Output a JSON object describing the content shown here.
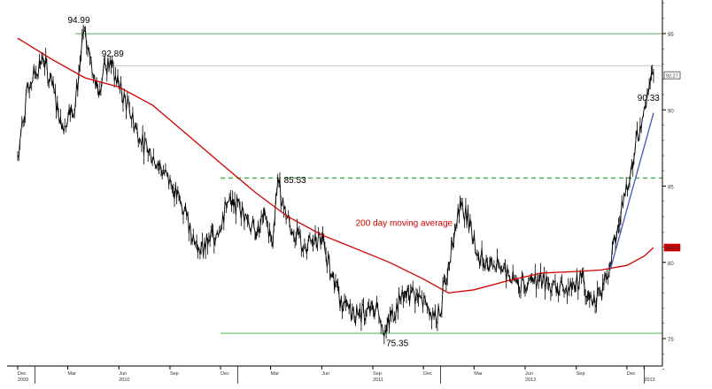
{
  "chart_data": {
    "type": "line",
    "title": "",
    "xlabel": "",
    "ylabel": "",
    "ylim": [
      72.5,
      98.7
    ],
    "xlim": [
      "2009-12-01",
      "2013-01-31"
    ],
    "y_ticks": [
      75,
      80,
      85,
      90,
      95
    ],
    "y_tick_labels": [
      "75",
      "80",
      "85",
      "90",
      "95"
    ],
    "x_ticks": [
      {
        "date": "2009-12-01",
        "label": "Dec",
        "year": "2009"
      },
      {
        "date": "2010-03-01",
        "label": "Mar",
        "year": ""
      },
      {
        "date": "2010-06-01",
        "label": "Jun",
        "year": "2010"
      },
      {
        "date": "2010-09-01",
        "label": "Sep",
        "year": ""
      },
      {
        "date": "2010-12-01",
        "label": "Dec",
        "year": ""
      },
      {
        "date": "2011-03-01",
        "label": "Mar",
        "year": ""
      },
      {
        "date": "2011-06-01",
        "label": "Jun",
        "year": ""
      },
      {
        "date": "2011-09-01",
        "label": "Sep",
        "year": "2011"
      },
      {
        "date": "2011-12-01",
        "label": "Dec",
        "year": ""
      },
      {
        "date": "2012-03-01",
        "label": "Mar",
        "year": ""
      },
      {
        "date": "2012-06-01",
        "label": "Jun",
        "year": "2012"
      },
      {
        "date": "2012-09-01",
        "label": "Sep",
        "year": ""
      },
      {
        "date": "2012-12-01",
        "label": "Dec",
        "year": ""
      },
      {
        "date": "2013-01-01",
        "label": "",
        "year": "2013"
      }
    ],
    "series": [
      {
        "type": "price",
        "color": "#000000",
        "x": [
          "2009-12-01",
          "2009-12-20",
          "2010-01-15",
          "2010-01-28",
          "2010-02-20",
          "2010-03-15",
          "2010-03-29",
          "2010-04-10",
          "2010-04-26",
          "2010-05-05",
          "2010-05-18",
          "2010-06-01",
          "2010-06-20",
          "2010-07-10",
          "2010-08-10",
          "2010-09-05",
          "2010-10-01",
          "2010-10-25",
          "2010-11-10",
          "2010-11-25",
          "2010-12-15",
          "2011-01-05",
          "2011-02-01",
          "2011-02-20",
          "2011-03-05",
          "2011-03-14",
          "2011-03-25",
          "2011-04-10",
          "2011-05-01",
          "2011-06-01",
          "2011-06-20",
          "2011-07-10",
          "2011-08-05",
          "2011-09-10",
          "2011-09-25",
          "2011-10-04",
          "2011-10-20",
          "2011-11-10",
          "2011-12-10",
          "2011-12-30",
          "2012-01-15",
          "2012-02-05",
          "2012-02-25",
          "2012-03-05",
          "2012-03-25",
          "2012-04-20",
          "2012-05-20",
          "2012-06-15",
          "2012-07-15",
          "2012-08-10",
          "2012-09-10",
          "2012-09-25",
          "2012-10-15",
          "2012-11-01",
          "2012-11-20",
          "2012-12-10",
          "2012-12-25",
          "2013-01-05",
          "2013-01-12",
          "2013-01-18"
        ],
        "y": [
          87.0,
          91.5,
          93.5,
          92.0,
          89.0,
          90.5,
          94.99,
          93.5,
          91.0,
          93.0,
          92.89,
          91.5,
          90.0,
          88.0,
          86.5,
          85.0,
          83.0,
          80.5,
          81.5,
          82.0,
          84.0,
          83.5,
          82.0,
          83.0,
          81.0,
          85.53,
          83.5,
          82.0,
          81.0,
          81.5,
          79.0,
          77.0,
          76.5,
          77.0,
          75.35,
          76.5,
          77.5,
          78.0,
          77.0,
          76.5,
          80.0,
          84.0,
          82.5,
          80.5,
          80.0,
          79.5,
          78.5,
          79.0,
          78.5,
          78.0,
          79.0,
          77.5,
          78.0,
          80.0,
          83.0,
          86.5,
          89.0,
          90.33,
          91.8,
          92.27
        ]
      },
      {
        "name": "200 day moving average",
        "type": "moving-average",
        "color": "#d40000",
        "x": [
          "2009-12-01",
          "2010-02-01",
          "2010-04-01",
          "2010-06-01",
          "2010-08-01",
          "2010-10-01",
          "2010-12-01",
          "2011-02-01",
          "2011-04-01",
          "2011-06-01",
          "2011-08-01",
          "2011-10-01",
          "2011-12-01",
          "2012-01-15",
          "2012-03-01",
          "2012-05-01",
          "2012-07-01",
          "2012-09-01",
          "2012-10-15",
          "2012-12-01",
          "2013-01-01",
          "2013-01-18"
        ],
        "y": [
          94.7,
          93.3,
          92.1,
          91.5,
          90.3,
          88.4,
          86.5,
          84.6,
          83.0,
          81.8,
          80.9,
          80.0,
          78.9,
          78.0,
          78.2,
          78.8,
          79.3,
          79.4,
          79.5,
          79.8,
          80.4,
          80.97
        ]
      },
      {
        "type": "trendline",
        "color": "#4455bb",
        "x": [
          "2012-11-01",
          "2013-01-18"
        ],
        "y": [
          79.5,
          89.8
        ]
      }
    ],
    "reference_lines": [
      {
        "y": 94.99,
        "style": "solid",
        "color": "#4caf50",
        "x_start": "2010-03-15"
      },
      {
        "y": 92.89,
        "style": "solid",
        "color": "#cccccc",
        "x_start": "2010-05-18"
      },
      {
        "y": 85.53,
        "style": "dashed",
        "color": "#4caf50",
        "x_start": "2010-12-01"
      },
      {
        "y": 75.35,
        "style": "solid",
        "color": "#4caf50",
        "x_start": "2010-12-01"
      }
    ],
    "annotations": [
      {
        "text": "94.99",
        "x": "2010-03-01",
        "y": 95.7
      },
      {
        "text": "92.89",
        "x": "2010-05-01",
        "y": 93.5
      },
      {
        "text": "85.53",
        "x": "2011-03-25",
        "y": 85.2
      },
      {
        "text": "75.35",
        "x": "2011-09-25",
        "y": 74.5
      },
      {
        "text": "90.33",
        "x": "2012-12-20",
        "y": 90.6
      },
      {
        "text": "200 day moving average",
        "x": "2011-08-01",
        "y": 82.4,
        "color": "#d40000"
      }
    ],
    "right_badges": [
      {
        "text": "92.27",
        "y": 92.27,
        "color": "#000000",
        "bg": "#ffffff"
      },
      {
        "text": "80.97",
        "y": 80.97,
        "color": "#ffffff",
        "bg": "#cc0000"
      }
    ]
  }
}
